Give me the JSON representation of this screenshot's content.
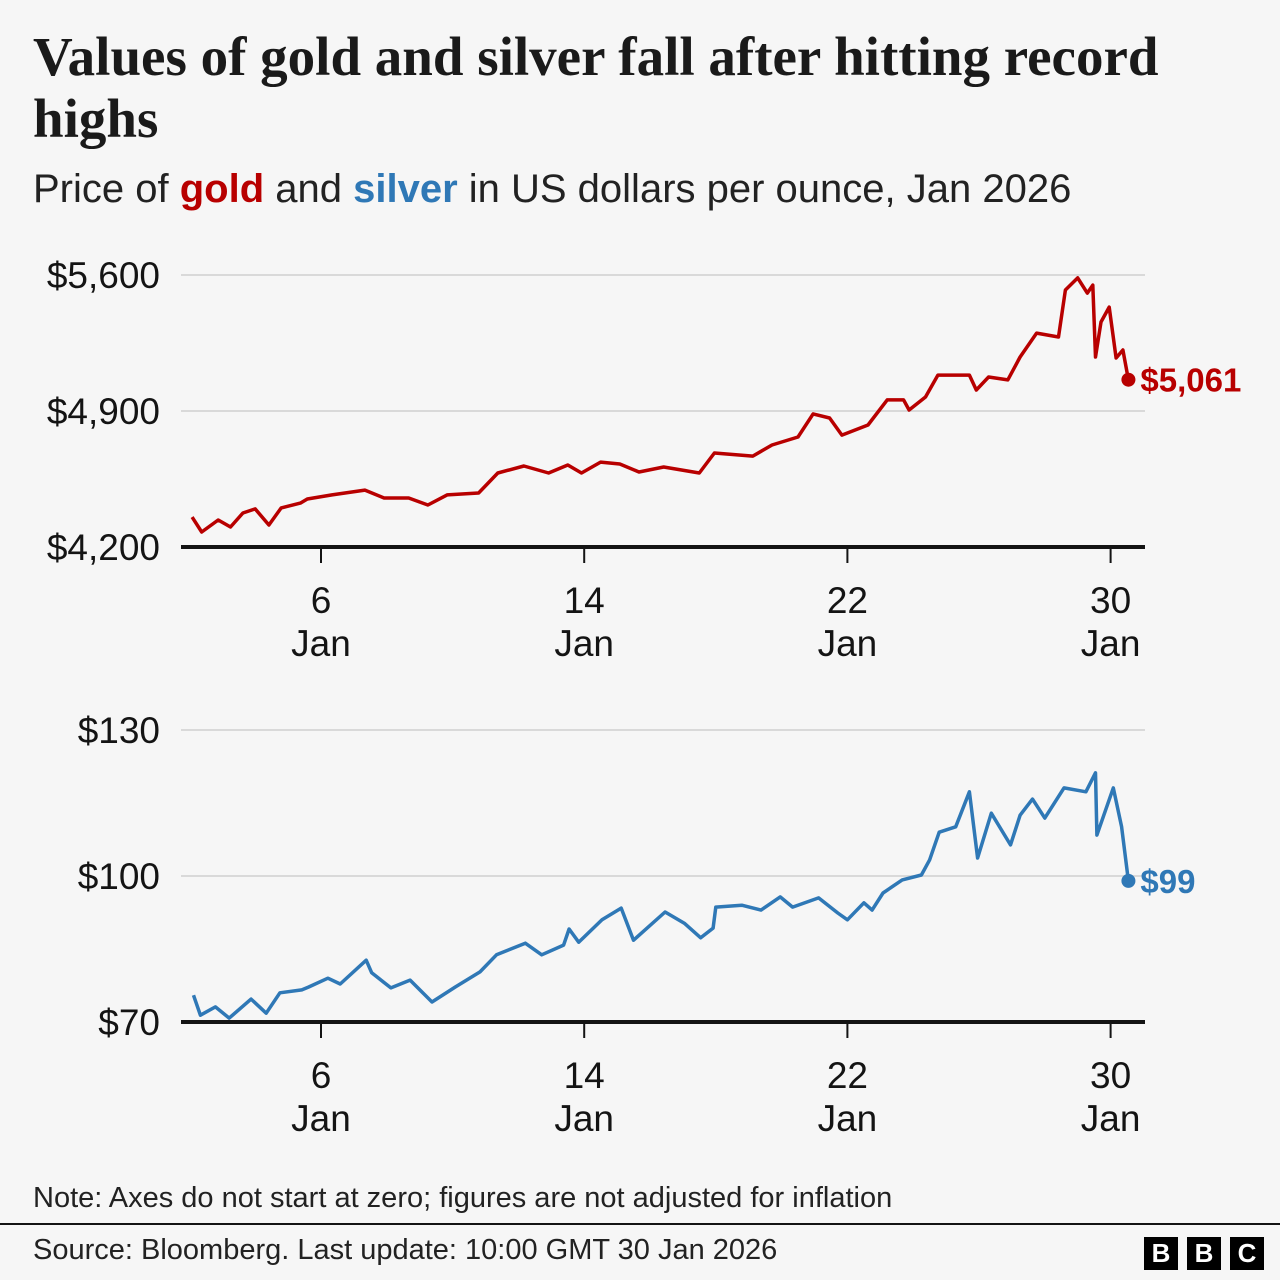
{
  "title": "Values of gold and silver fall after hitting record highs",
  "subtitle": {
    "prefix": "Price of ",
    "gold": "gold",
    "middle": " and ",
    "silver": "silver",
    "suffix": " in US dollars per ounce, Jan 2026"
  },
  "note": "Note: Axes do not start at zero; figures are not adjusted for inflation",
  "source": "Source: Bloomberg. Last update: 10:00 GMT 30 Jan 2026",
  "logo": {
    "letters": [
      "B",
      "B",
      "C"
    ],
    "text": "BBC"
  },
  "colors": {
    "gold": "#b80000",
    "silver": "#2f78b6",
    "background": "#f6f6f6",
    "grid": "#d9d9d9",
    "axis": "#141414"
  },
  "chart_data": [
    {
      "type": "line",
      "name": "gold",
      "ylim": [
        4200,
        5600
      ],
      "yticks": [
        {
          "value": 4200,
          "label": "$4,200"
        },
        {
          "value": 4900,
          "label": "$4,900"
        },
        {
          "value": 5600,
          "label": "$5,600"
        }
      ],
      "xticks": [
        {
          "date": "2026-01-06",
          "day": "6",
          "month": "Jan"
        },
        {
          "date": "2026-01-14",
          "day": "14",
          "month": "Jan"
        },
        {
          "date": "2026-01-22",
          "day": "22",
          "month": "Jan"
        },
        {
          "date": "2026-01-30",
          "day": "30",
          "month": "Jan"
        }
      ],
      "grid": true,
      "color": "#b80000",
      "end_label": "$5,061",
      "points": [
        [
          "2026-01-02T02",
          4354
        ],
        [
          "2026-01-02T09",
          4277
        ],
        [
          "2026-01-02T21",
          4339
        ],
        [
          "2026-01-03T06",
          4303
        ],
        [
          "2026-01-03T15",
          4375
        ],
        [
          "2026-01-04T00",
          4396
        ],
        [
          "2026-01-04T10",
          4313
        ],
        [
          "2026-01-04T19",
          4401
        ],
        [
          "2026-01-05T09",
          4426
        ],
        [
          "2026-01-05T14",
          4447
        ],
        [
          "2026-01-06T08",
          4468
        ],
        [
          "2026-01-07T08",
          4493
        ],
        [
          "2026-01-07T22",
          4452
        ],
        [
          "2026-01-08T16",
          4452
        ],
        [
          "2026-01-09T06",
          4416
        ],
        [
          "2026-01-09T20",
          4468
        ],
        [
          "2026-01-10T19",
          4478
        ],
        [
          "2026-01-11T09",
          4581
        ],
        [
          "2026-01-12T04",
          4617
        ],
        [
          "2026-01-12T22",
          4581
        ],
        [
          "2026-01-13T12",
          4622
        ],
        [
          "2026-01-13T22",
          4581
        ],
        [
          "2026-01-14T12",
          4637
        ],
        [
          "2026-01-15T02",
          4627
        ],
        [
          "2026-01-15T16",
          4586
        ],
        [
          "2026-01-16T10",
          4612
        ],
        [
          "2026-01-17T12",
          4581
        ],
        [
          "2026-01-17T23",
          4684
        ],
        [
          "2026-01-19T03",
          4668
        ],
        [
          "2026-01-19T17",
          4725
        ],
        [
          "2026-01-20T12",
          4766
        ],
        [
          "2026-01-20T23",
          4885
        ],
        [
          "2026-01-21T11",
          4864
        ],
        [
          "2026-01-21T20",
          4776
        ],
        [
          "2026-01-22T15",
          4828
        ],
        [
          "2026-01-23T05",
          4957
        ],
        [
          "2026-01-23T17",
          4957
        ],
        [
          "2026-01-23T21",
          4905
        ],
        [
          "2026-01-24T09",
          4972
        ],
        [
          "2026-01-24T18",
          5085
        ],
        [
          "2026-01-25T17",
          5085
        ],
        [
          "2026-01-25T22",
          5008
        ],
        [
          "2026-01-26T07",
          5075
        ],
        [
          "2026-01-26T21",
          5060
        ],
        [
          "2026-01-27T06",
          5178
        ],
        [
          "2026-01-27T18",
          5301
        ],
        [
          "2026-01-28T10",
          5281
        ],
        [
          "2026-01-28T15",
          5523
        ],
        [
          "2026-01-29T00",
          5585
        ],
        [
          "2026-01-29T07",
          5507
        ],
        [
          "2026-01-29T11",
          5548
        ],
        [
          "2026-01-29T13",
          5178
        ],
        [
          "2026-01-29T17",
          5358
        ],
        [
          "2026-01-29T23",
          5435
        ],
        [
          "2026-01-30T04",
          5173
        ],
        [
          "2026-01-30T09",
          5214
        ],
        [
          "2026-01-30T13",
          5061
        ]
      ]
    },
    {
      "type": "line",
      "name": "silver",
      "ylim": [
        70,
        130
      ],
      "yticks": [
        {
          "value": 70,
          "label": "$70"
        },
        {
          "value": 100,
          "label": "$100"
        },
        {
          "value": 130,
          "label": "$130"
        }
      ],
      "xticks": [
        {
          "date": "2026-01-06",
          "day": "6",
          "month": "Jan"
        },
        {
          "date": "2026-01-14",
          "day": "14",
          "month": "Jan"
        },
        {
          "date": "2026-01-22",
          "day": "22",
          "month": "Jan"
        },
        {
          "date": "2026-01-30",
          "day": "30",
          "month": "Jan"
        }
      ],
      "grid": true,
      "color": "#2f78b6",
      "end_label": "$99",
      "points": [
        [
          "2026-01-02T03",
          75.5
        ],
        [
          "2026-01-02T08",
          71.4
        ],
        [
          "2026-01-02T19",
          73.1
        ],
        [
          "2026-01-03T05",
          70.8
        ],
        [
          "2026-01-03T21",
          74.7
        ],
        [
          "2026-01-04T08",
          71.8
        ],
        [
          "2026-01-04T18",
          76.0
        ],
        [
          "2026-01-05T10",
          76.6
        ],
        [
          "2026-01-05T15",
          77.2
        ],
        [
          "2026-01-06T05",
          79.0
        ],
        [
          "2026-01-06T14",
          77.8
        ],
        [
          "2026-01-07T09",
          82.7
        ],
        [
          "2026-01-07T13",
          80.1
        ],
        [
          "2026-01-08T03",
          77.0
        ],
        [
          "2026-01-08T17",
          78.6
        ],
        [
          "2026-01-09T09",
          74.1
        ],
        [
          "2026-01-10T02",
          77.2
        ],
        [
          "2026-01-10T20",
          80.3
        ],
        [
          "2026-01-11T08",
          83.8
        ],
        [
          "2026-01-12T05",
          86.2
        ],
        [
          "2026-01-12T17",
          83.8
        ],
        [
          "2026-01-13T09",
          85.8
        ],
        [
          "2026-01-13T13",
          89.1
        ],
        [
          "2026-01-13T20",
          86.4
        ],
        [
          "2026-01-14T13",
          91.0
        ],
        [
          "2026-01-15T03",
          93.4
        ],
        [
          "2026-01-15T12",
          86.8
        ],
        [
          "2026-01-16T11",
          92.6
        ],
        [
          "2026-01-17T01",
          90.3
        ],
        [
          "2026-01-17T13",
          87.3
        ],
        [
          "2026-01-17T22",
          89.3
        ],
        [
          "2026-01-18T00",
          93.6
        ],
        [
          "2026-01-18T19",
          94.0
        ],
        [
          "2026-01-19T09",
          93.0
        ],
        [
          "2026-01-19T23",
          95.7
        ],
        [
          "2026-01-20T08",
          93.6
        ],
        [
          "2026-01-21T03",
          95.5
        ],
        [
          "2026-01-21T17",
          92.4
        ],
        [
          "2026-01-22T00",
          91.0
        ],
        [
          "2026-01-22T12",
          94.5
        ],
        [
          "2026-01-22T18",
          93.0
        ],
        [
          "2026-01-23T02",
          96.5
        ],
        [
          "2026-01-23T16",
          99.2
        ],
        [
          "2026-01-24T06",
          100.2
        ],
        [
          "2026-01-24T12",
          103.3
        ],
        [
          "2026-01-24T19",
          109.0
        ],
        [
          "2026-01-25T07",
          110.1
        ],
        [
          "2026-01-25T17",
          117.3
        ],
        [
          "2026-01-25T23",
          103.7
        ],
        [
          "2026-01-26T09",
          112.9
        ],
        [
          "2026-01-26T23",
          106.4
        ],
        [
          "2026-01-27T06",
          112.5
        ],
        [
          "2026-01-27T15",
          115.8
        ],
        [
          "2026-01-28T00",
          111.9
        ],
        [
          "2026-01-28T14",
          118.1
        ],
        [
          "2026-01-29T06",
          117.3
        ],
        [
          "2026-01-29T13",
          121.2
        ],
        [
          "2026-01-29T14",
          108.4
        ],
        [
          "2026-01-30T02",
          118.1
        ],
        [
          "2026-01-30T08",
          110.1
        ],
        [
          "2026-01-30T13",
          99
        ]
      ]
    }
  ]
}
